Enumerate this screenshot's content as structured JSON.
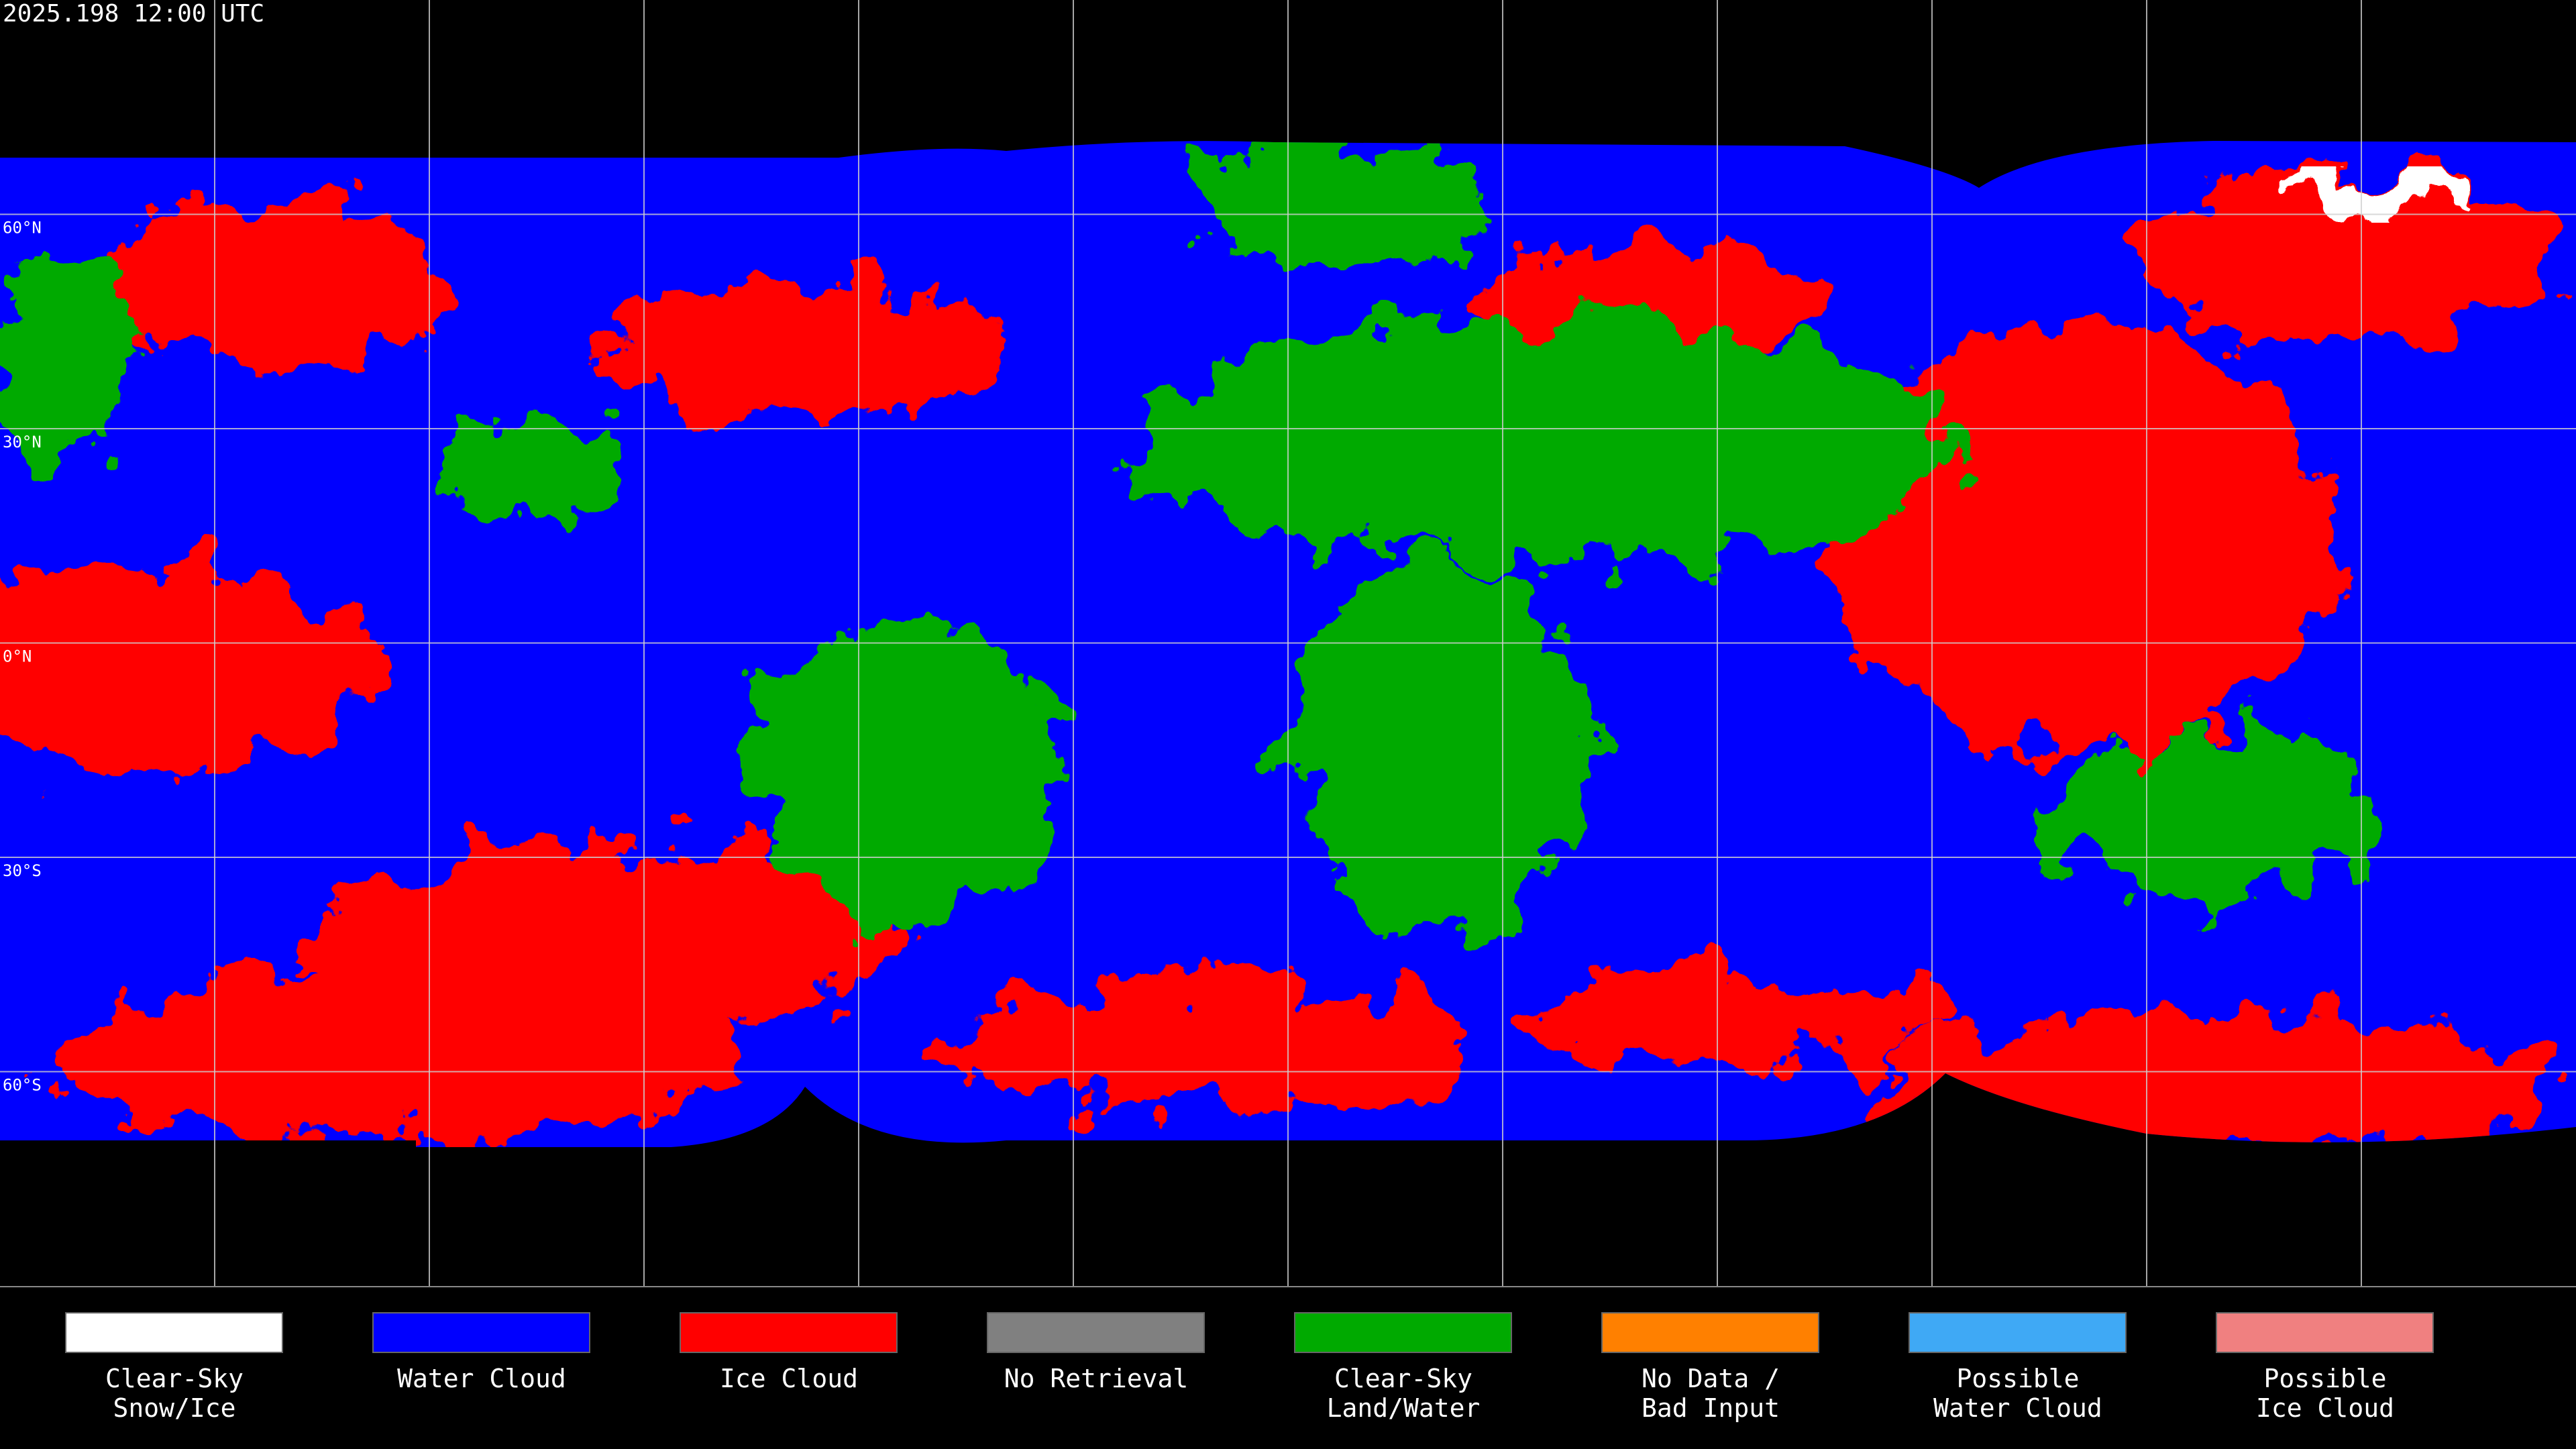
{
  "header": {
    "timestamp": "2025.198 12:00 UTC"
  },
  "map": {
    "latitude_labels": [
      "60°N",
      "30°N",
      "0°N",
      "30°S",
      "60°S"
    ]
  },
  "legend": {
    "items": [
      {
        "label": [
          "Clear-Sky",
          "Snow/Ice"
        ],
        "color": "#ffffff"
      },
      {
        "label": [
          "Water Cloud"
        ],
        "color": "#0000ff"
      },
      {
        "label": [
          "Ice Cloud"
        ],
        "color": "#ff0000"
      },
      {
        "label": [
          "No Retrieval"
        ],
        "color": "#808080"
      },
      {
        "label": [
          "Clear-Sky",
          "Land/Water"
        ],
        "color": "#00aa00"
      },
      {
        "label": [
          "No Data /",
          "Bad Input"
        ],
        "color": "#ff8000"
      },
      {
        "label": [
          "Possible",
          "Water Cloud"
        ],
        "color": "#3fa9f5"
      },
      {
        "label": [
          "Possible",
          "Ice Cloud"
        ],
        "color": "#f08080"
      }
    ]
  }
}
